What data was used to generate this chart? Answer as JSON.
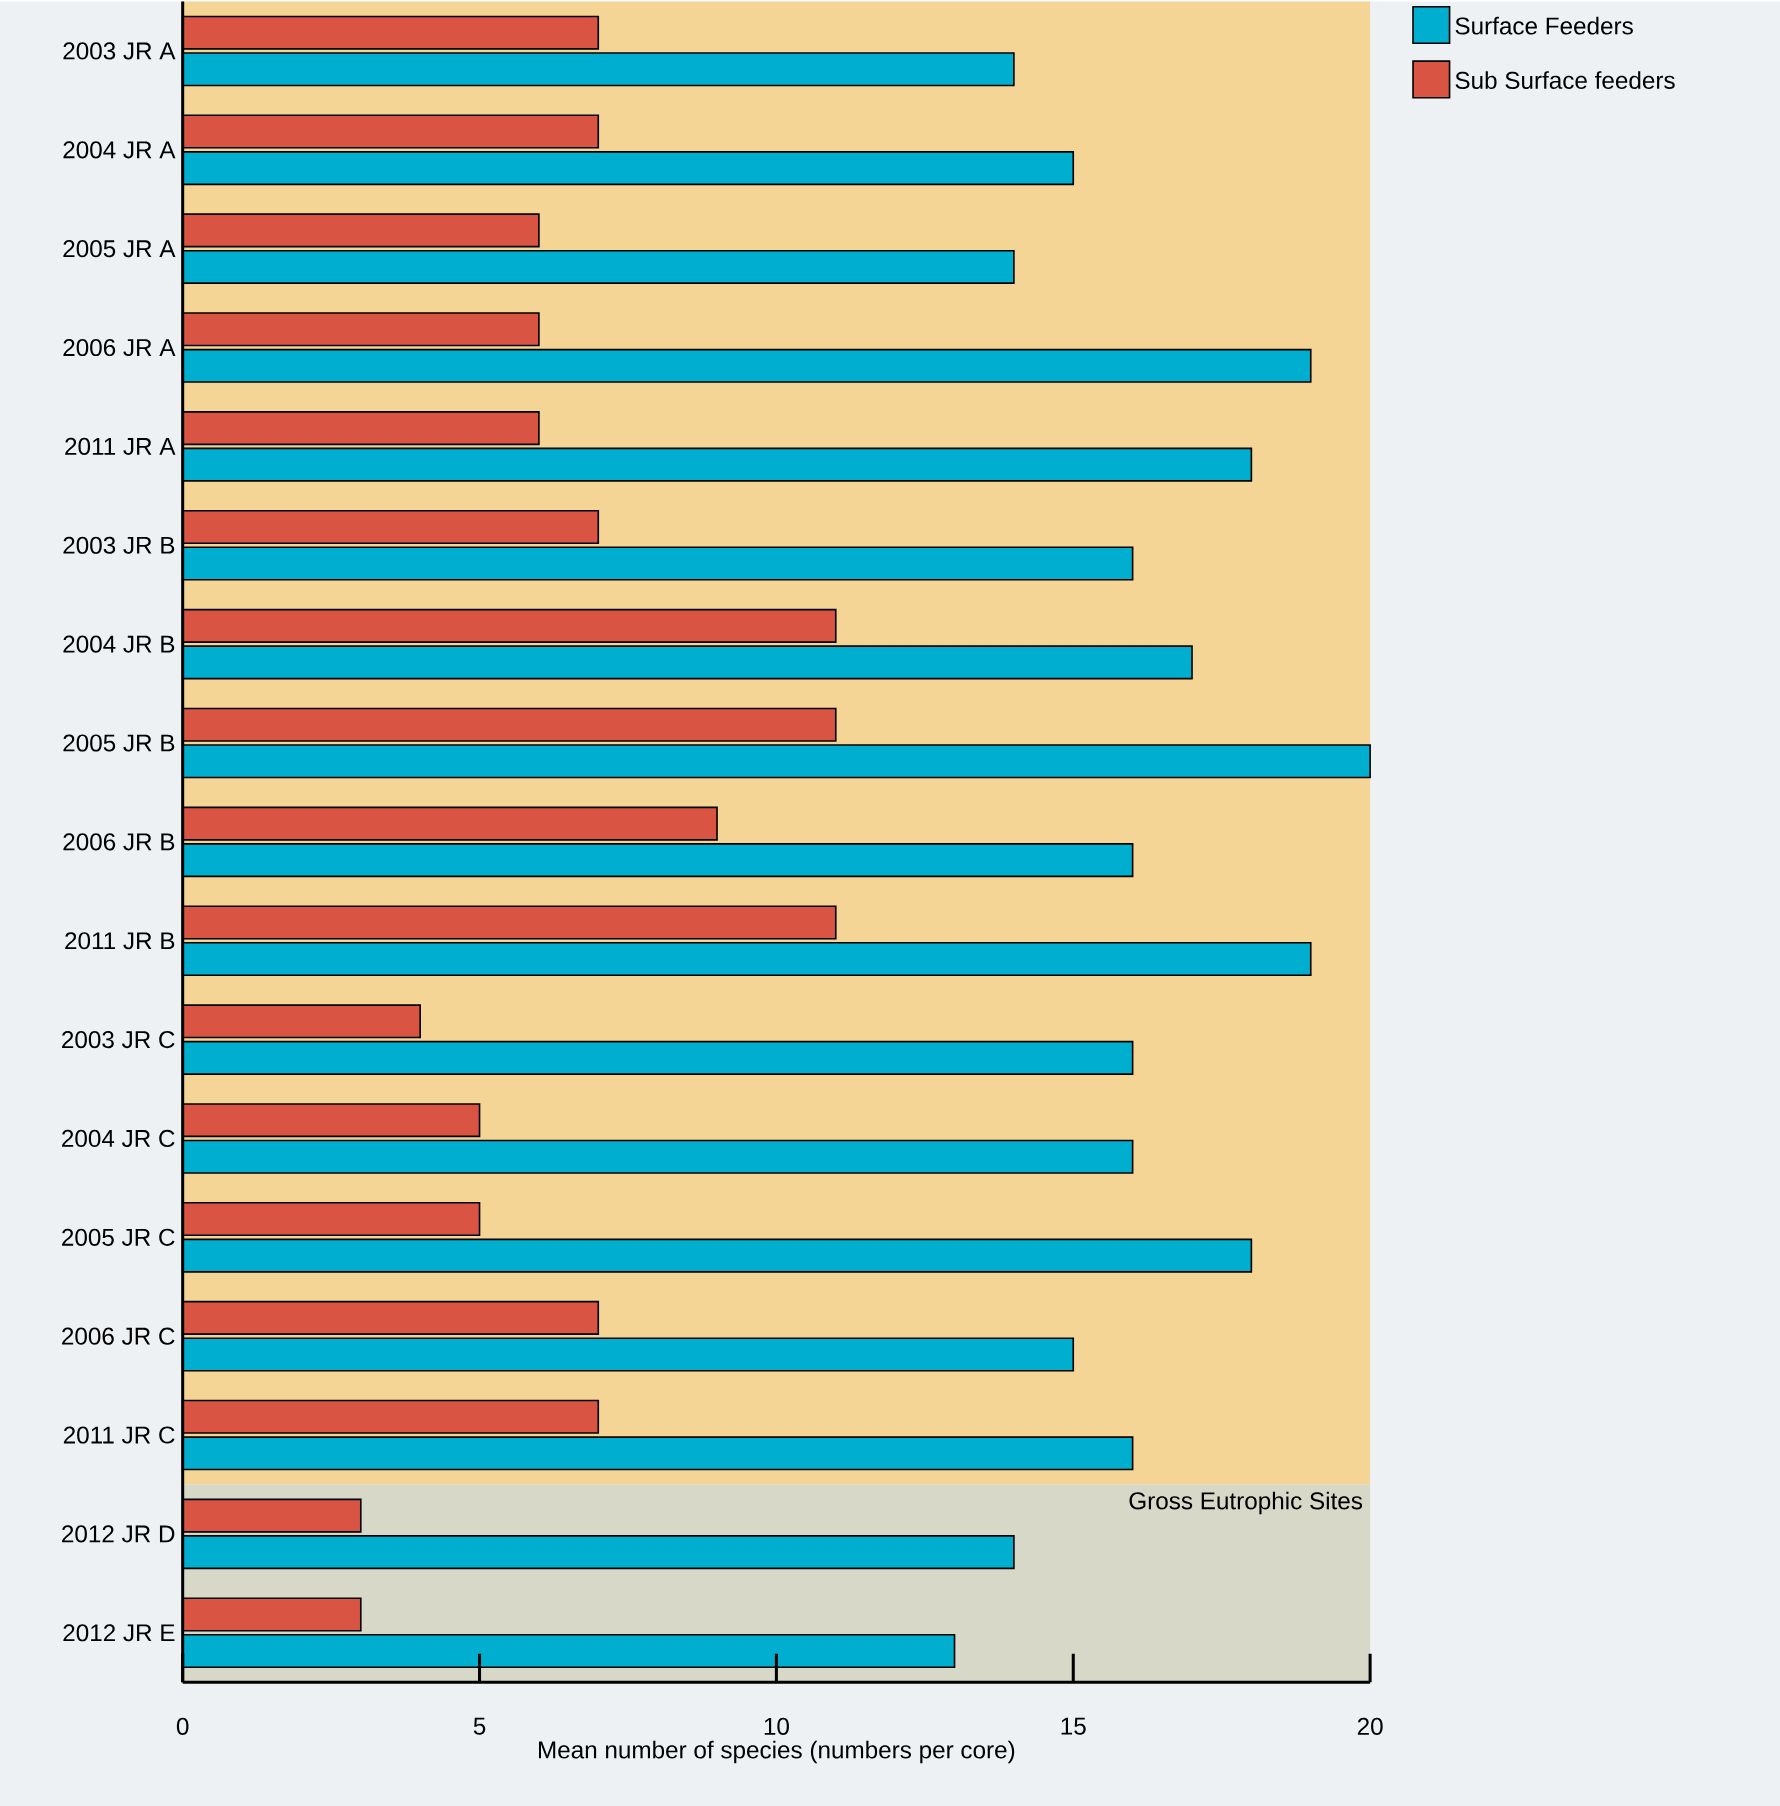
{
  "chart_data": {
    "type": "bar",
    "orientation": "horizontal",
    "xlabel": "Mean number of species (numbers per core)",
    "categories": [
      "2003 JR A",
      "2004 JR A",
      "2005 JR A",
      "2006 JR A",
      "2011 JR A",
      "2003 JR B",
      "2004 JR B",
      "2005 JR B",
      "2006 JR B",
      "2011 JR B",
      "2003 JR C",
      "2004 JR C",
      "2005 JR C",
      "2006 JR C",
      "2011 JR C",
      "2012 JR D",
      "2012 JR E"
    ],
    "series": [
      {
        "name": "Surface Feeders",
        "color": "#00aed0",
        "values": [
          14,
          15,
          14,
          19,
          18,
          16,
          17,
          20,
          16,
          19,
          16,
          16,
          18,
          15,
          16,
          14,
          13
        ]
      },
      {
        "name": "Sub Surface feeders",
        "color": "#d95442",
        "values": [
          7,
          7,
          6,
          6,
          6,
          7,
          11,
          11,
          9,
          11,
          4,
          5,
          5,
          7,
          7,
          3,
          3
        ]
      }
    ],
    "xlim": [
      0,
      20
    ],
    "xticks": [
      0,
      5,
      10,
      15,
      20
    ],
    "legend": "top right",
    "bands": [
      {
        "axis": "y",
        "from": "2003 JR A",
        "to": "2011 JR C",
        "color": "#f4d596"
      },
      {
        "axis": "y",
        "from": "2012 JR D",
        "to": "2012 JR E",
        "label": "Gross Eutrophic Sites",
        "color": "#d7d8c8"
      }
    ]
  }
}
